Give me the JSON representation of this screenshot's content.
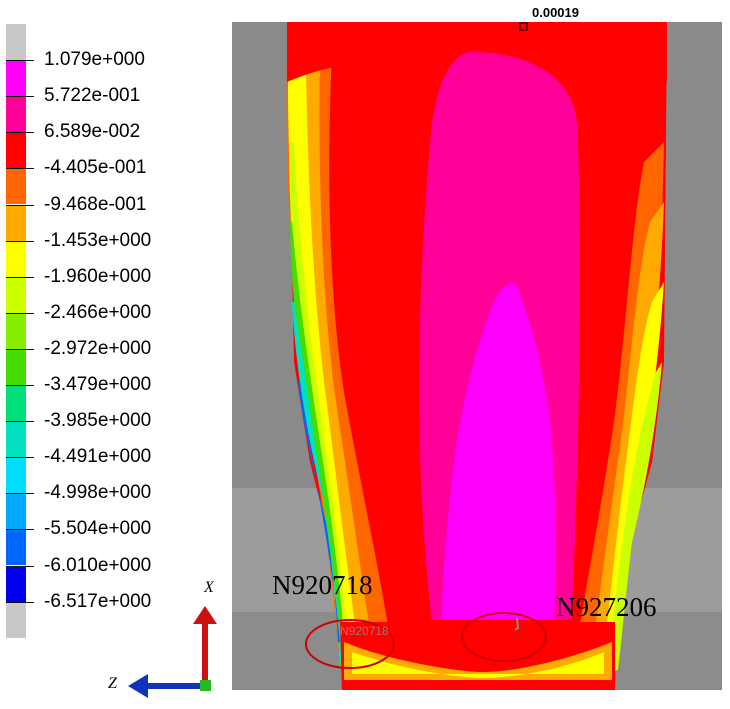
{
  "legend": {
    "values": [
      "1.079e+000",
      "5.722e-001",
      "6.589e-002",
      "-4.405e-001",
      "-9.468e-001",
      "-1.453e+000",
      "-1.960e+000",
      "-2.466e+000",
      "-2.972e+000",
      "-3.479e+000",
      "-3.985e+000",
      "-4.491e+000",
      "-4.998e+000",
      "-5.504e+000",
      "-6.010e+000",
      "-6.517e+000"
    ],
    "colors": [
      "#c8c8c8",
      "#ff00ff",
      "#ff0099",
      "#ff0000",
      "#ff6600",
      "#ffaa00",
      "#ffff00",
      "#ccff00",
      "#88ee00",
      "#44dd00",
      "#00e07a",
      "#00e0c0",
      "#00ddff",
      "#00aaff",
      "#0066ff",
      "#0000ee",
      "#c8c8c8"
    ]
  },
  "plot": {
    "max_marker_label": "0.00019",
    "node_labels": {
      "left": "N920718",
      "right": "N927206"
    },
    "faint_node_label": "N920718",
    "highlight_color": "#cc0000"
  },
  "axes": {
    "x_label": "X",
    "z_label": "Z",
    "x_color": "#cc1111",
    "z_color": "#1133bb"
  }
}
